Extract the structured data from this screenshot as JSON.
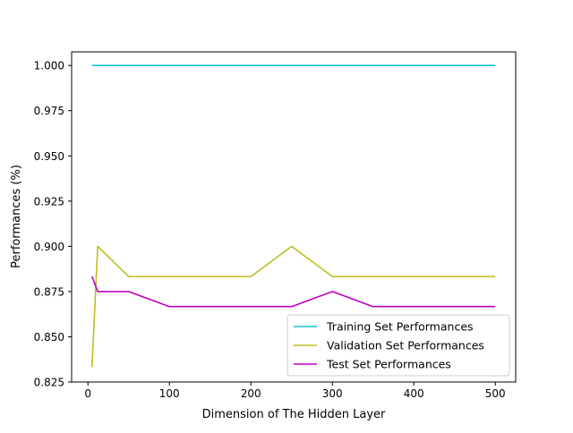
{
  "chart_data": {
    "type": "line",
    "title": "",
    "xlabel": "Dimension of The Hidden Layer",
    "ylabel": "Performances (%)",
    "xlim": [
      -20,
      525
    ],
    "ylim": [
      0.825,
      1.0075
    ],
    "xticks": [
      0,
      100,
      200,
      300,
      400,
      500
    ],
    "xtick_labels": [
      "0",
      "100",
      "200",
      "300",
      "400",
      "500"
    ],
    "yticks": [
      0.825,
      0.85,
      0.875,
      0.9,
      0.925,
      0.95,
      0.975,
      1.0
    ],
    "ytick_labels": [
      "0.825",
      "0.850",
      "0.875",
      "0.900",
      "0.925",
      "0.950",
      "0.975",
      "1.000"
    ],
    "grid": false,
    "legend_position": "lower-right",
    "series": [
      {
        "name": "Training Set Performances",
        "color": "#17becf",
        "x": [
          5,
          10,
          50,
          100,
          200,
          250,
          300,
          350,
          500
        ],
        "y": [
          1.0,
          1.0,
          1.0,
          1.0,
          1.0,
          1.0,
          1.0,
          1.0,
          1.0
        ]
      },
      {
        "name": "Validation Set Performances",
        "color": "#bcbd22",
        "x": [
          5,
          12,
          50,
          100,
          200,
          250,
          300,
          350,
          500
        ],
        "y": [
          0.8333,
          0.9,
          0.8833,
          0.8833,
          0.8833,
          0.9,
          0.8833,
          0.8833,
          0.8833
        ]
      },
      {
        "name": "Test Set Performances",
        "color": "#bf00bf",
        "x": [
          5,
          12,
          50,
          100,
          200,
          250,
          300,
          350,
          500
        ],
        "y": [
          0.8833,
          0.875,
          0.875,
          0.8667,
          0.8667,
          0.8667,
          0.875,
          0.8667,
          0.8667
        ]
      }
    ]
  }
}
